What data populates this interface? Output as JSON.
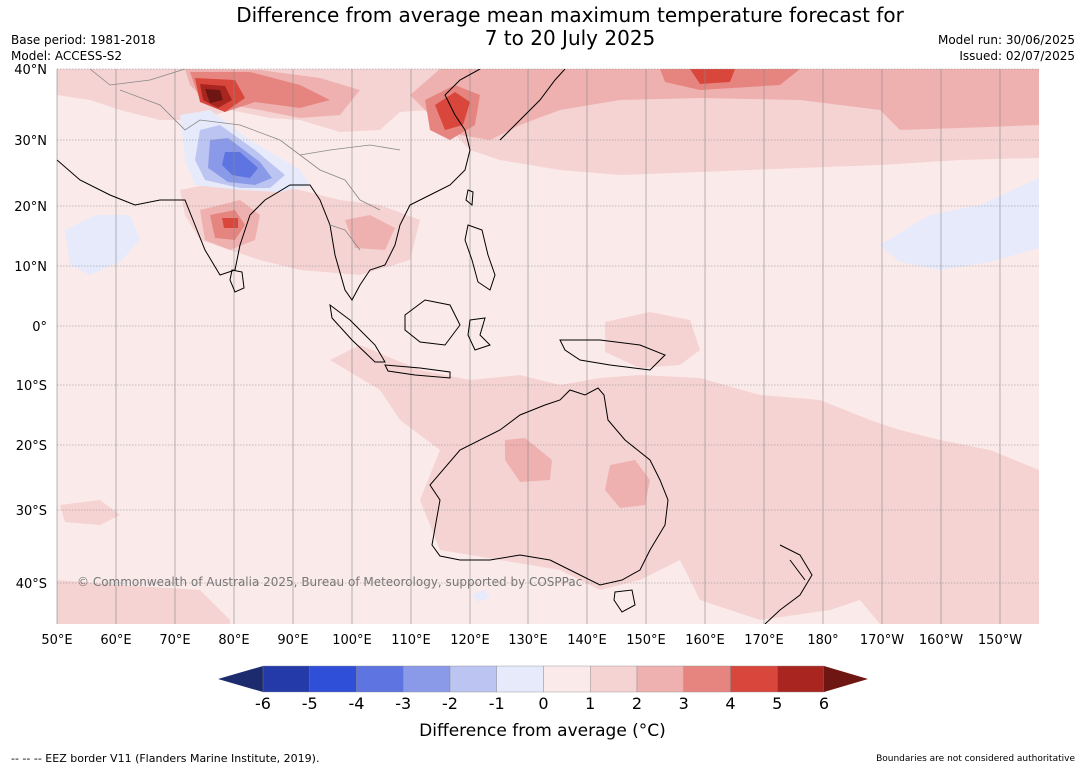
{
  "title_line1": "Difference from average mean maximum temperature forecast for",
  "title_line2": "7 to 20 July 2025",
  "base_period": "Base period: 1981-2018",
  "model": "Model: ACCESS-S2",
  "model_run": "Model run: 30/06/2025",
  "issued": "Issued: 02/07/2025",
  "copyright": "© Commonwealth of Australia 2025, Bureau of Meteorology, supported by COSPPac",
  "lat_labels": [
    "40°N",
    "30°N",
    "20°N",
    "10°N",
    "0°",
    "10°S",
    "20°S",
    "30°S",
    "40°S"
  ],
  "lon_labels": [
    "50°E",
    "60°E",
    "70°E",
    "80°E",
    "90°E",
    "100°E",
    "110°E",
    "120°E",
    "130°E",
    "140°E",
    "150°E",
    "160°E",
    "170°E",
    "180°",
    "170°W",
    "160°W",
    "150°W"
  ],
  "colorbar": {
    "label": "Difference from average (°C)",
    "ticks": [
      "-6",
      "-5",
      "-4",
      "-3",
      "-2",
      "-1",
      "0",
      "1",
      "2",
      "3",
      "4",
      "5",
      "6"
    ],
    "colors": {
      "below_-6": "#1c2a6e",
      "-6_-5": "#243aa8",
      "-5_-4": "#2f4fd9",
      "-4_-3": "#5e74e0",
      "-3_-2": "#8a9ae8",
      "-2_-1": "#bcc5f2",
      "-1_0": "#e6eafb",
      "0_1": "#fbeaea",
      "1_2": "#f5d3d2",
      "2_3": "#efb1af",
      "3_4": "#e68580",
      "4_5": "#d9473c",
      "5_6": "#a8261f",
      "above_6": "#6e1612"
    }
  },
  "eez_note": "-- -- -- EEZ border V11 (Flanders Marine Institute, 2019).",
  "boundaries_note": "Boundaries are not considered authoritative"
}
